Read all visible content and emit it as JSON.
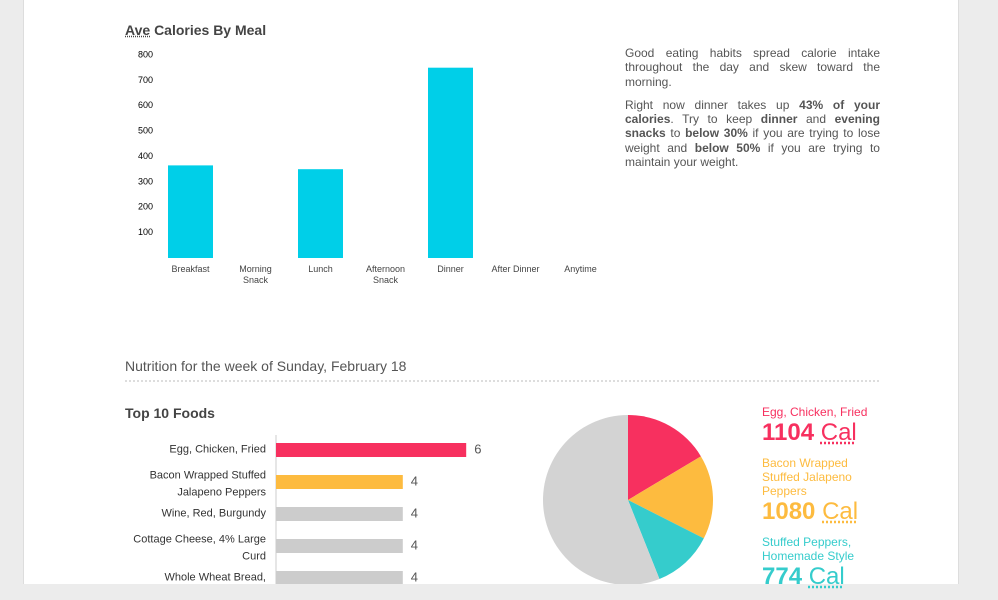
{
  "chart_data": [
    {
      "type": "bar",
      "title_abbr": "Ave",
      "title": "Calories By Meal",
      "categories": [
        "Breakfast",
        "Morning Snack",
        "Lunch",
        "Afternoon Snack",
        "Dinner",
        "After Dinner",
        "Anytime"
      ],
      "values": [
        365,
        0,
        350,
        0,
        750,
        0,
        0
      ],
      "color": "#00cfe8",
      "ylim": [
        0,
        800
      ],
      "yticks": [
        100,
        200,
        300,
        400,
        500,
        600,
        700,
        800
      ]
    },
    {
      "type": "hbar",
      "title": "Top 10 Foods",
      "categories": [
        "Egg, Chicken, Fried",
        "Bacon Wrapped Stuffed Jalapeno Peppers",
        "Wine, Red, Burgundy",
        "Cottage Cheese, 4% Large Curd",
        "Whole Wheat Bread,"
      ],
      "values": [
        6,
        4,
        4,
        4,
        4
      ],
      "colors": [
        "#f7305f",
        "#fdbb3f",
        "#cccccc",
        "#cccccc",
        "#cccccc"
      ]
    },
    {
      "type": "pie",
      "unit": "Cal",
      "categories": [
        "Egg, Chicken, Fried",
        "Bacon Wrapped Stuffed Jalapeno Peppers",
        "Stuffed Peppers, Homemade Style",
        null
      ],
      "values": [
        1104,
        1080,
        774,
        3770
      ],
      "colors": [
        "#f7305f",
        "#fdbb3f",
        "#35cccc",
        "#d3d3d3"
      ]
    }
  ],
  "summary": {
    "paragraphs": [
      [
        "Good eating habits spread calorie intake throughout the day and skew toward the morning."
      ],
      [
        "Right now dinner takes up ",
        "43% of your calories",
        ". Try to keep ",
        "dinner",
        " and ",
        "evening snacks",
        " to ",
        "below 30%",
        " if you are trying to lose weight and ",
        "below 50%",
        " if you are trying to maintain your weight."
      ]
    ]
  },
  "section_title": "Nutrition for the week of Sunday, February 18"
}
